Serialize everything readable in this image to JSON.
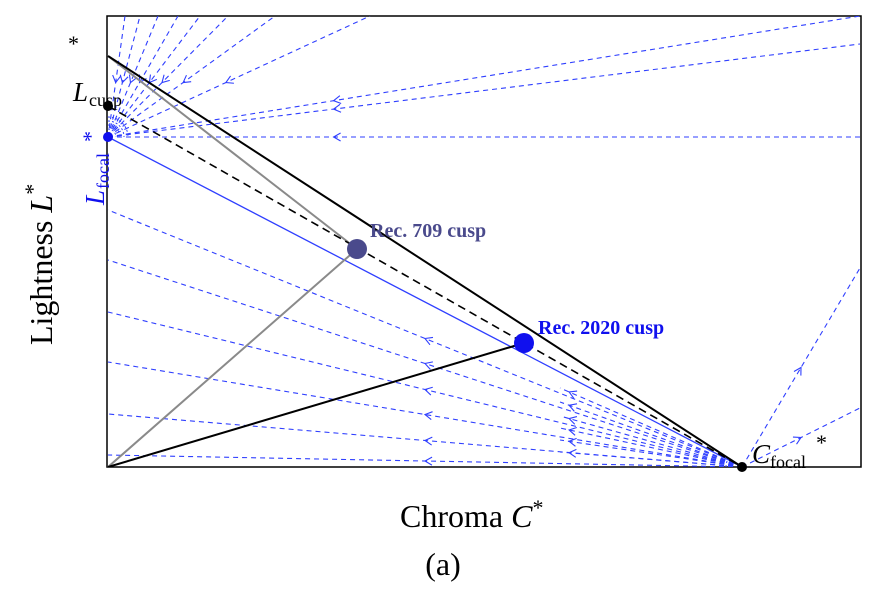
{
  "figure": {
    "ylabel": {
      "main": "Lightness ",
      "var": "L",
      "sup": "*"
    },
    "xlabel": {
      "main": "Chroma ",
      "var": "C",
      "sup": "*"
    },
    "caption": "(a)"
  },
  "labels": {
    "l_cusp": {
      "var": "L",
      "sub": "cusp",
      "sup": "*"
    },
    "l_focal": {
      "var": "L",
      "sub": "focal",
      "sup": "*"
    },
    "c_focal": {
      "var": "C",
      "sub": "focal",
      "sup": "*"
    },
    "rec709": "Rec. 709 cusp",
    "rec2020": "Rec. 2020 cusp"
  },
  "colors": {
    "projection_lines": "#2f3fff",
    "focal_line": "#2f3fff",
    "rec709": "#4a4a8c",
    "rec2020": "#1010ee",
    "gamut_709": "#8a8a8a",
    "gamut_2020": "#000000"
  }
}
